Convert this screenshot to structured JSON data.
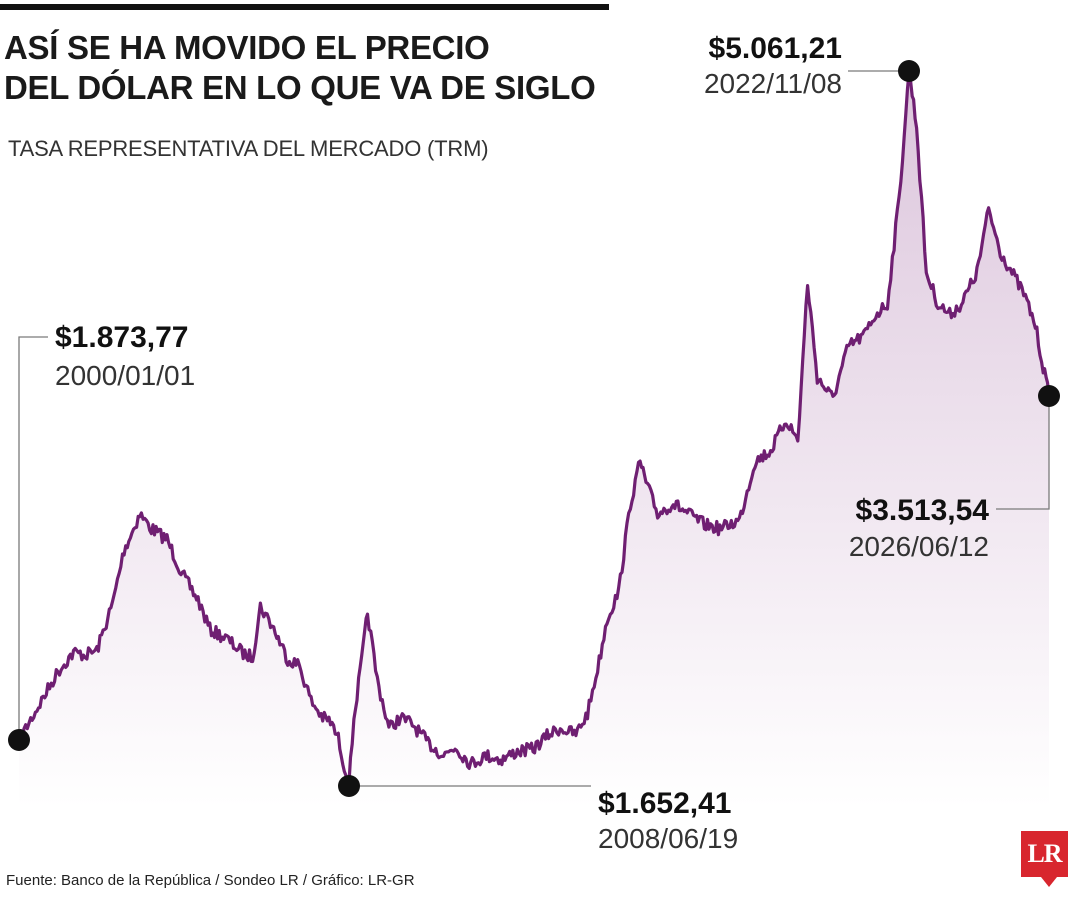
{
  "header": {
    "title_line1": "ASÍ SE HA MOVIDO EL PRECIO",
    "title_line2": "DEL DÓLAR EN LO QUE VA DE SIGLO",
    "subtitle": "TASA REPRESENTATIVA DEL MERCADO (TRM)"
  },
  "footer": {
    "source": "Fuente: Banco de la República / Sondeo LR / Gráfico: LR-GR",
    "logo_text": "LR"
  },
  "colors": {
    "line": "#6f1f72",
    "fill": "#c9a6c9",
    "text": "#1a1a1a"
  },
  "chart_data": {
    "type": "area",
    "title": "ASÍ SE HA MOVIDO EL PRECIO DEL DÓLAR EN LO QUE VA DE SIGLO",
    "subtitle": "TASA REPRESENTATIVA DEL MERCADO (TRM)",
    "xlabel": "",
    "ylabel": "",
    "xlim": [
      2000.0,
      2026.45
    ],
    "ylim": [
      1550,
      5150
    ],
    "grid": false,
    "legend": "none",
    "series": [
      {
        "x": [
          2000.0,
          2000.3,
          2000.7,
          2001.0,
          2001.4,
          2001.7,
          2002.0,
          2002.4,
          2002.7,
          2002.9,
          2003.1,
          2003.4,
          2003.8,
          2004.2,
          2004.6,
          2004.9,
          2005.3,
          2005.8,
          2006.0,
          2006.2,
          2006.5,
          2006.9,
          2007.2,
          2007.5,
          2007.8,
          2008.0,
          2008.2,
          2008.47,
          2008.6,
          2008.8,
          2008.95,
          2009.2,
          2009.5,
          2009.8,
          2010.1,
          2010.5,
          2010.9,
          2011.2,
          2011.6,
          2012.0,
          2012.4,
          2012.8,
          2013.2,
          2013.6,
          2013.9,
          2014.3,
          2014.6,
          2014.9,
          2015.1,
          2015.4,
          2015.7,
          2015.95,
          2016.1,
          2016.4,
          2016.8,
          2017.2,
          2017.6,
          2018.0,
          2018.5,
          2018.9,
          2019.3,
          2019.7,
          2020.0,
          2020.25,
          2020.5,
          2020.9,
          2021.3,
          2021.7,
          2022.0,
          2022.3,
          2022.6,
          2022.86,
          2023.05,
          2023.3,
          2023.6,
          2023.9,
          2024.2,
          2024.6,
          2024.9,
          2025.2,
          2025.5,
          2025.8,
          2026.1,
          2026.3,
          2026.45
        ],
        "y": [
          1873.77,
          1970,
          2100,
          2200,
          2290,
          2280,
          2300,
          2520,
          2780,
          2860,
          2950,
          2880,
          2830,
          2660,
          2540,
          2400,
          2360,
          2280,
          2270,
          2510,
          2420,
          2260,
          2230,
          2060,
          1980,
          1960,
          1880,
          1652.41,
          1980,
          2250,
          2480,
          2160,
          1930,
          1980,
          1950,
          1860,
          1800,
          1840,
          1760,
          1800,
          1780,
          1820,
          1830,
          1900,
          1930,
          1900,
          2000,
          2250,
          2450,
          2580,
          3000,
          3200,
          3100,
          2950,
          3000,
          2950,
          2900,
          2880,
          2920,
          3200,
          3250,
          3400,
          3300,
          4050,
          3600,
          3500,
          3750,
          3800,
          3900,
          3950,
          4450,
          5061.21,
          4800,
          4100,
          3950,
          3900,
          3950,
          4100,
          4400,
          4200,
          4100,
          4000,
          3850,
          3650,
          3513.54
        ]
      }
    ],
    "annotations": [
      {
        "price": "$1.873,77",
        "date": "2000/01/01",
        "x": 2000.0,
        "y": 1873.77
      },
      {
        "price": "$1.652,41",
        "date": "2008/06/19",
        "x": 2008.47,
        "y": 1652.41
      },
      {
        "price": "$5.061,21",
        "date": "2022/11/08",
        "x": 2022.86,
        "y": 5061.21
      },
      {
        "price": "$3.513,54",
        "date": "2026/06/12",
        "x": 2026.45,
        "y": 3513.54
      }
    ]
  }
}
